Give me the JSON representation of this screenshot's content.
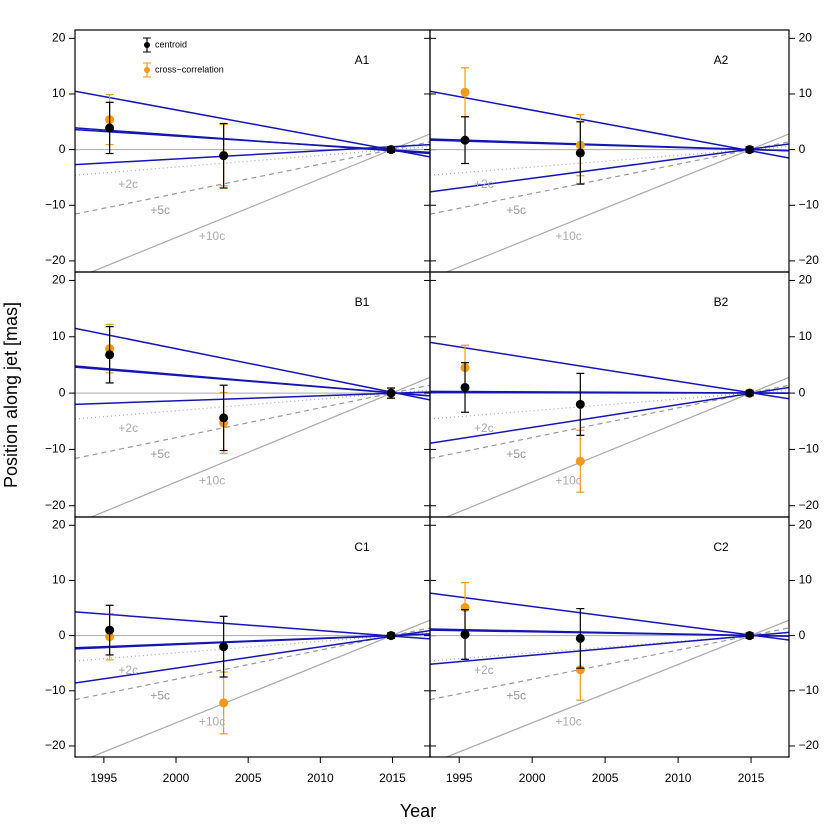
{
  "chart_data": {
    "type": "panels",
    "xlabel": "Year",
    "ylabel": "Position along jet [mas]",
    "xlim": [
      1993,
      2017.6
    ],
    "xticks": [
      1995,
      2000,
      2005,
      2010,
      2015
    ],
    "ylim": [
      -22,
      21.5
    ],
    "yticks": [
      {
        "value": -20,
        "label": "−20"
      },
      {
        "value": -10,
        "label": "−10"
      },
      0,
      10,
      20
    ],
    "hline": 0,
    "hline_color": "#aaaaaa",
    "fit_color": "#1515b5",
    "reference_lines": [
      {
        "name": "+2c",
        "color": "#aaaaaa",
        "dash": "dotted",
        "values": [
          -4.6,
          0.55
        ]
      },
      {
        "name": "+5c",
        "color": "#999999",
        "dash": "dashed",
        "values": [
          -11.6,
          1.4
        ]
      },
      {
        "name": "+10c",
        "color": "#aaaaaa",
        "dash": "solid",
        "values": [
          -23.2,
          2.8
        ]
      }
    ],
    "panels": [
      {
        "type": "scatter",
        "label": "A1",
        "legend": "top-left",
        "fits": [
          [
            10.5,
            -1.3
          ],
          [
            3.9,
            -0.7
          ],
          [
            3.6,
            -0.5
          ],
          [
            -2.7,
            0.9
          ]
        ],
        "series": [
          {
            "name": "centroid",
            "color": "#000000",
            "x": [
              1995.4,
              2003.3,
              2014.9
            ],
            "values": [
              3.9,
              -1.1,
              0
            ],
            "errors": [
              4.6,
              5.8,
              0.5
            ]
          },
          {
            "name": "cross−correlation",
            "color": "#f39a1c",
            "x": [
              1995.4,
              2003.3,
              2014.9
            ],
            "values": [
              5.4,
              -1.0,
              0
            ],
            "errors": [
              4.5,
              5.5,
              0.5
            ]
          }
        ]
      },
      {
        "type": "scatter",
        "label": "A2",
        "fits": [
          [
            10.5,
            -1.5
          ],
          [
            1.9,
            -0.2
          ],
          [
            1.7,
            -0.2
          ],
          [
            -7.6,
            1.0
          ]
        ],
        "series": [
          {
            "color": "#000000",
            "x": [
              1995.4,
              2003.3,
              2014.9
            ],
            "values": [
              1.7,
              -0.6,
              0
            ],
            "errors": [
              4.2,
              5.6,
              0.5
            ]
          },
          {
            "color": "#f39a1c",
            "x": [
              1995.4,
              2003.3,
              2014.9
            ],
            "values": [
              10.3,
              0.8,
              0
            ],
            "errors": [
              4.4,
              5.5,
              0.5
            ]
          }
        ]
      },
      {
        "type": "scatter",
        "label": "B1",
        "fits": [
          [
            11.5,
            -1.2
          ],
          [
            4.8,
            -0.5
          ],
          [
            4.6,
            -0.5
          ],
          [
            -2.0,
            0.2
          ]
        ],
        "series": [
          {
            "color": "#000000",
            "x": [
              1995.4,
              2003.3,
              2014.9
            ],
            "values": [
              6.8,
              -4.4,
              0
            ],
            "errors": [
              5.0,
              5.8,
              0.9
            ]
          },
          {
            "color": "#f39a1c",
            "x": [
              1995.4,
              2003.3,
              2014.9
            ],
            "values": [
              7.9,
              -5.3,
              0
            ],
            "errors": [
              4.3,
              5.4,
              0.9
            ]
          }
        ]
      },
      {
        "type": "scatter",
        "label": "B2",
        "fits": [
          [
            9.0,
            -1.0
          ],
          [
            0.3,
            0.0
          ],
          [
            0.1,
            0.0
          ],
          [
            -8.9,
            1.0
          ]
        ],
        "series": [
          {
            "color": "#000000",
            "x": [
              1995.4,
              2003.3,
              2014.9
            ],
            "values": [
              1.0,
              -2.0,
              0
            ],
            "errors": [
              4.4,
              5.5,
              0.5
            ]
          },
          {
            "color": "#f39a1c",
            "x": [
              1995.4,
              2003.3,
              2014.9
            ],
            "values": [
              4.5,
              -12.1,
              0
            ],
            "errors": [
              4.0,
              5.5,
              0.5
            ]
          }
        ]
      },
      {
        "type": "scatter",
        "label": "C1",
        "fits": [
          [
            4.3,
            -0.6
          ],
          [
            -2.2,
            0.3
          ],
          [
            -2.4,
            0.3
          ],
          [
            -8.6,
            0.9
          ]
        ],
        "series": [
          {
            "color": "#000000",
            "x": [
              1995.4,
              2003.3,
              2014.9
            ],
            "values": [
              1.0,
              -2.0,
              0
            ],
            "errors": [
              4.5,
              5.5,
              0.5
            ]
          },
          {
            "color": "#f39a1c",
            "x": [
              1995.4,
              2003.3,
              2014.9
            ],
            "values": [
              -0.2,
              -12.2,
              0
            ],
            "errors": [
              4.2,
              5.6,
              0.5
            ]
          }
        ]
      },
      {
        "type": "scatter",
        "label": "C2",
        "fits": [
          [
            7.7,
            -0.8
          ],
          [
            1.2,
            -0.1
          ],
          [
            1.0,
            -0.1
          ],
          [
            -5.2,
            0.6
          ]
        ],
        "series": [
          {
            "color": "#000000",
            "x": [
              1995.4,
              2003.3,
              2014.9
            ],
            "values": [
              0.2,
              -0.5,
              0
            ],
            "errors": [
              4.5,
              5.4,
              0.5
            ]
          },
          {
            "color": "#f39a1c",
            "x": [
              1995.4,
              2003.3,
              2014.9
            ],
            "values": [
              5.1,
              -6.2,
              0
            ],
            "errors": [
              4.5,
              5.5,
              0.5
            ]
          }
        ]
      }
    ]
  }
}
